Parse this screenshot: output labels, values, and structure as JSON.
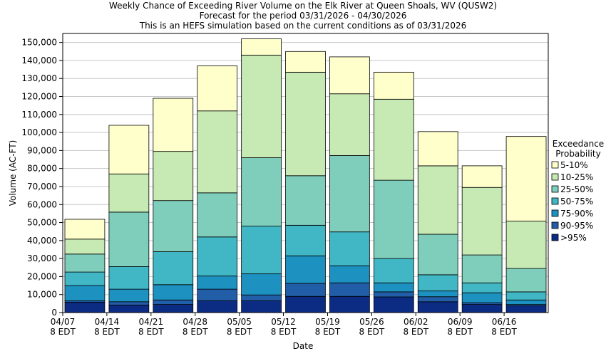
{
  "chart_data": {
    "type": "bar",
    "stacked": true,
    "title_lines": [
      "Weekly Chance of Exceeding River Volume on the Elk River at Queen Shoals, WV (QUSW2)",
      "Forecast for the period 03/31/2026 - 04/30/2026",
      "This is an HEFS simulation based on the current conditions as of 03/31/2026"
    ],
    "xlabel": "Date",
    "ylabel": "Volume (AC-FT)",
    "ylim": [
      0,
      155000
    ],
    "yticks": [
      0,
      10000,
      20000,
      30000,
      40000,
      50000,
      60000,
      70000,
      80000,
      90000,
      100000,
      110000,
      120000,
      130000,
      140000,
      150000
    ],
    "ytick_labels": [
      "0",
      "10,000",
      "20,000",
      "30,000",
      "40,000",
      "50,000",
      "60,000",
      "70,000",
      "80,000",
      "90,000",
      "100,000",
      "110,000",
      "120,000",
      "130,000",
      "140,000",
      "150,000"
    ],
    "xtick_dates": [
      "04/07",
      "04/14",
      "04/21",
      "04/28",
      "05/05",
      "05/12",
      "05/19",
      "05/26",
      "06/02",
      "06/09",
      "06/16"
    ],
    "xtick_sub": "8 EDT",
    "legend_title": [
      "Exceedance",
      "Probability"
    ],
    "legend_position": "right",
    "bins": [
      {
        "name": "5-10%",
        "color": "#ffffcc"
      },
      {
        "name": "10-25%",
        "color": "#c7e9b4"
      },
      {
        "name": "25-50%",
        "color": "#7fcdbb"
      },
      {
        "name": "50-75%",
        "color": "#41b6c4"
      },
      {
        "name": "75-90%",
        "color": "#1d91c0"
      },
      {
        "name": "90-95%",
        "color": "#225ea8"
      },
      {
        "name": ">95%",
        "color": "#0c2c84"
      }
    ],
    "weeks": [
      {
        "label": "04/07 - 04/14",
        "levels": [
          5800,
          6500,
          15000,
          22500,
          32500,
          40800,
          51800
        ]
      },
      {
        "label": "04/14 - 04/21",
        "levels": [
          4200,
          6000,
          13000,
          25500,
          55800,
          77000,
          104000
        ]
      },
      {
        "label": "04/21 - 04/28",
        "levels": [
          4500,
          7000,
          15500,
          33800,
          62200,
          89500,
          119000
        ]
      },
      {
        "label": "04/28 - 05/05",
        "levels": [
          6500,
          13000,
          20300,
          42000,
          66500,
          112000,
          137000
        ]
      },
      {
        "label": "05/05 - 05/12",
        "levels": [
          6500,
          9800,
          21500,
          48000,
          86000,
          143000,
          152000
        ]
      },
      {
        "label": "05/12 - 05/19",
        "levels": [
          9000,
          16200,
          31500,
          48500,
          76000,
          133500,
          145000
        ]
      },
      {
        "label": "05/19 - 05/26",
        "levels": [
          9000,
          16500,
          26000,
          44800,
          87200,
          121500,
          142000
        ]
      },
      {
        "label": "05/26 - 06/02",
        "levels": [
          8700,
          11500,
          16500,
          30000,
          73500,
          118500,
          133500
        ]
      },
      {
        "label": "06/02 - 06/09",
        "levels": [
          6000,
          8800,
          12000,
          21000,
          43500,
          81500,
          100500
        ]
      },
      {
        "label": "06/09 - 06/16",
        "levels": [
          4500,
          5500,
          11000,
          16500,
          32000,
          69500,
          81500
        ]
      },
      {
        "label": "06/16 - 06/23",
        "levels": [
          3700,
          4500,
          7000,
          11500,
          24500,
          50800,
          97800
        ]
      }
    ]
  }
}
